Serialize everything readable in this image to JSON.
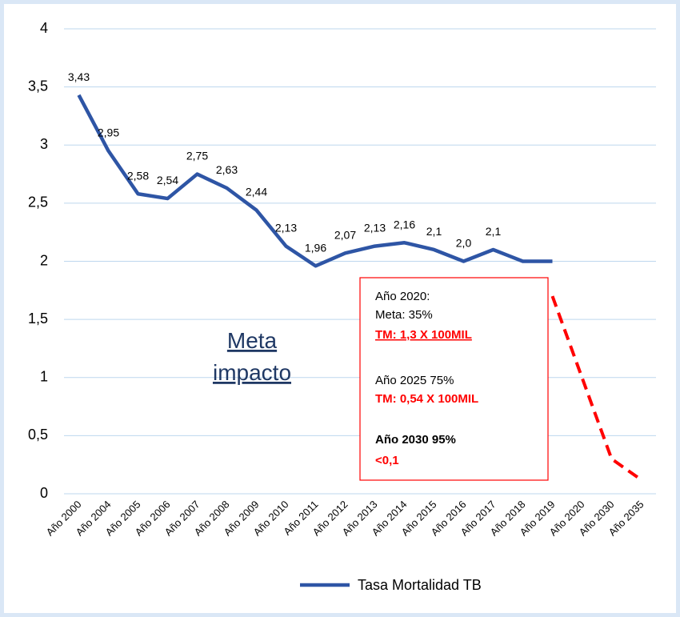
{
  "chart_data": {
    "type": "line",
    "categories": [
      "Año 2000",
      "Año 2004",
      "Año 2005",
      "Año 2006",
      "Año 2007",
      "Año 2008",
      "Año 2009",
      "Año 2010",
      "Año 2011",
      "Año 2012",
      "Año 2013",
      "Año 2014",
      "Año 2015",
      "Año 2016",
      "Año 2017",
      "Año 2018",
      "Año 2019",
      "Año 2020",
      "Año 2030",
      "Año 2035"
    ],
    "series": [
      {
        "name": "Tasa Mortalidad TB",
        "color": "#2e55a5",
        "values": [
          3.43,
          2.95,
          2.58,
          2.54,
          2.75,
          2.63,
          2.44,
          2.13,
          1.96,
          2.07,
          2.13,
          2.16,
          2.1,
          2.0,
          2.1,
          2.0,
          2.0,
          null,
          null,
          null
        ],
        "value_labels": [
          "3,43",
          "2,95",
          "2,58",
          "2,54",
          "2,75",
          "2,63",
          "2,44",
          "2,13",
          "1,96",
          "2,07",
          "2,13",
          "2,16",
          "2,1",
          "2,0",
          "2,1",
          null,
          null,
          null,
          null,
          null
        ]
      },
      {
        "color": "#ff0000",
        "dashed": true,
        "values": [
          null,
          null,
          null,
          null,
          null,
          null,
          null,
          null,
          null,
          null,
          null,
          null,
          null,
          null,
          null,
          null,
          1.7,
          1.0,
          0.3,
          0.12
        ]
      }
    ],
    "ylim": [
      0,
      4
    ],
    "yticks": [
      0,
      {
        "value": 0.5,
        "label": "0,5"
      },
      1,
      {
        "value": 1.5,
        "label": "1,5"
      },
      2,
      {
        "value": 2.5,
        "label": "2,5"
      },
      3,
      {
        "value": 3.5,
        "label": "3,5"
      },
      4
    ],
    "grid": true,
    "legend": "bottom",
    "annotations": {
      "meta": [
        "Meta",
        "impacto"
      ],
      "box": [
        "Año 2020:",
        "Meta: 35%",
        "TM: 1,3 X 100MIL",
        "Año 2025  75%",
        "TM: 0,54 X 100MIL",
        "Año 2030 95%",
        "<0,1"
      ]
    }
  }
}
